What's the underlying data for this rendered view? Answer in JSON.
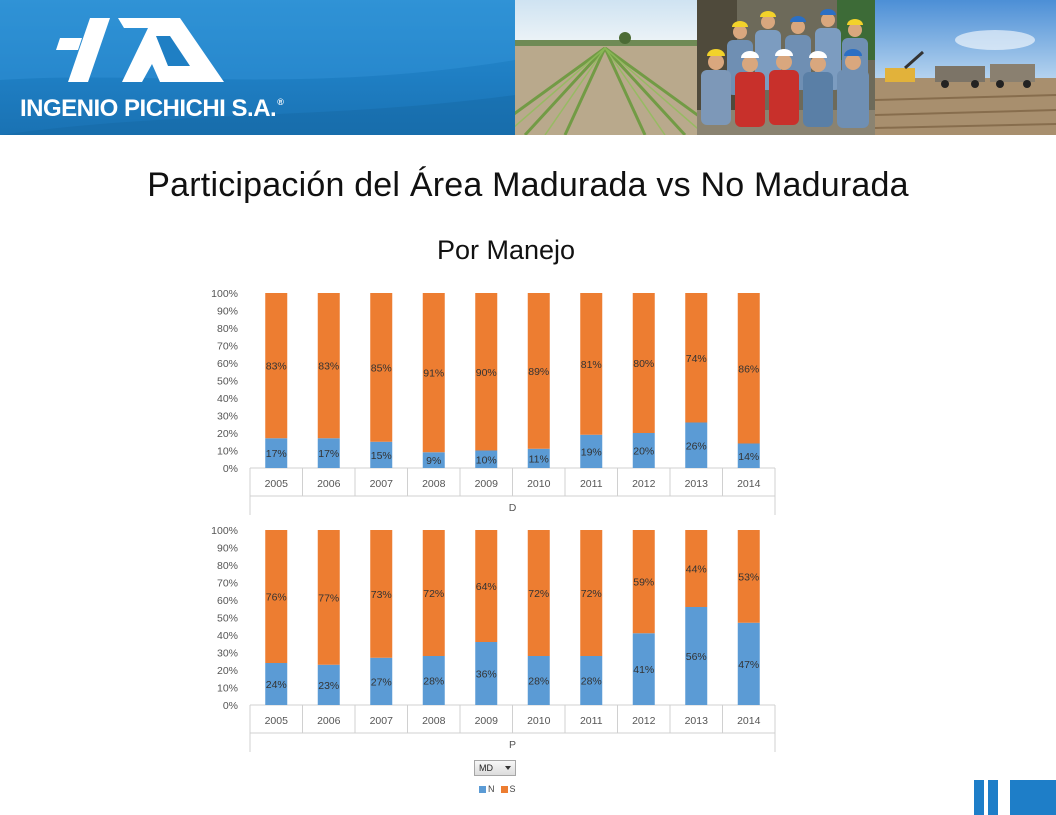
{
  "header": {
    "company_name": "INGENIO PICHICHI S.A.",
    "registered_mark": "®",
    "brand_color": "#1f7fc4"
  },
  "slide": {
    "title": "Participación del Área Madurada vs No Madurada",
    "subtitle": "Por Manejo"
  },
  "pivot": {
    "filter_label": "MD",
    "legend": [
      {
        "name": "N",
        "color": "#5b9bd5"
      },
      {
        "name": "S",
        "color": "#ed7d31"
      }
    ]
  },
  "chart_data": [
    {
      "type": "bar",
      "stacked": true,
      "xlabel": "D",
      "ylabel": "",
      "ylim": [
        0,
        100
      ],
      "yticks": [
        "0%",
        "10%",
        "20%",
        "30%",
        "40%",
        "50%",
        "60%",
        "70%",
        "80%",
        "90%",
        "100%"
      ],
      "categories": [
        "2005",
        "2006",
        "2007",
        "2008",
        "2009",
        "2010",
        "2011",
        "2012",
        "2013",
        "2014"
      ],
      "series": [
        {
          "name": "N",
          "color": "#5b9bd5",
          "values": [
            17,
            17,
            15,
            9,
            10,
            11,
            19,
            20,
            26,
            14
          ]
        },
        {
          "name": "S",
          "color": "#ed7d31",
          "values": [
            83,
            83,
            85,
            91,
            90,
            89,
            81,
            80,
            74,
            86
          ]
        }
      ],
      "grid": false,
      "legend": "bottom"
    },
    {
      "type": "bar",
      "stacked": true,
      "xlabel": "P",
      "ylabel": "",
      "ylim": [
        0,
        100
      ],
      "yticks": [
        "0%",
        "10%",
        "20%",
        "30%",
        "40%",
        "50%",
        "60%",
        "70%",
        "80%",
        "90%",
        "100%"
      ],
      "categories": [
        "2005",
        "2006",
        "2007",
        "2008",
        "2009",
        "2010",
        "2011",
        "2012",
        "2013",
        "2014"
      ],
      "series": [
        {
          "name": "N",
          "color": "#5b9bd5",
          "values": [
            24,
            23,
            27,
            28,
            36,
            28,
            28,
            41,
            56,
            47
          ]
        },
        {
          "name": "S",
          "color": "#ed7d31",
          "values": [
            76,
            77,
            73,
            72,
            64,
            72,
            72,
            59,
            44,
            53
          ]
        }
      ],
      "grid": false,
      "legend": "bottom"
    }
  ]
}
